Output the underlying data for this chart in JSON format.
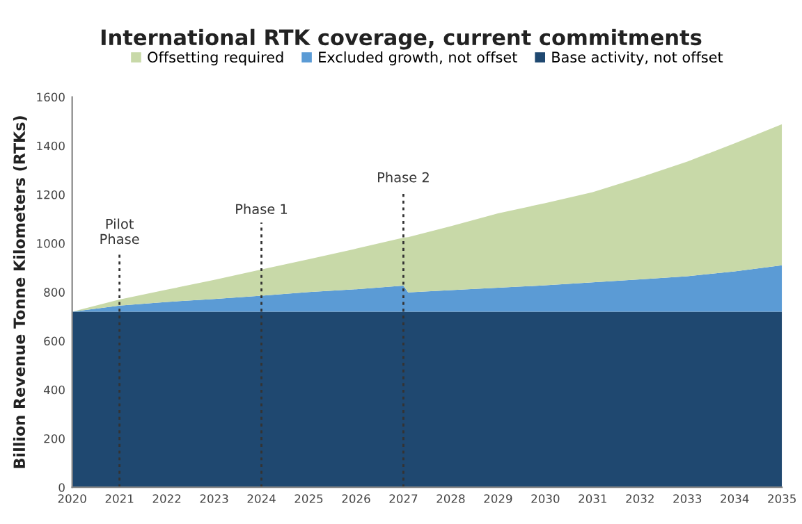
{
  "chart_data": {
    "type": "area",
    "stacked": true,
    "title": "International RTK coverage, current commitments",
    "ylabel": "Billion Revenue Tonne Kilometers (RTKs)",
    "x": [
      2020,
      2021,
      2022,
      2023,
      2024,
      2025,
      2026,
      2027,
      2027.1,
      2028,
      2029,
      2030,
      2031,
      2032,
      2033,
      2034,
      2035
    ],
    "series": [
      {
        "name": "Base activity, not offset",
        "color": "#1f4870",
        "values": [
          720,
          720,
          720,
          720,
          720,
          720,
          720,
          720,
          720,
          720,
          720,
          720,
          720,
          720,
          720,
          720,
          720
        ]
      },
      {
        "name": "Excluded growth, not offset",
        "color": "#5b9bd5",
        "values": [
          0,
          25,
          40,
          52,
          65,
          80,
          92,
          107,
          79,
          88,
          98,
          108,
          120,
          132,
          145,
          165,
          190
        ]
      },
      {
        "name": "Offsetting required",
        "color": "#c8d9a8",
        "values": [
          0,
          25,
          50,
          78,
          108,
          135,
          166,
          196,
          226,
          262,
          305,
          337,
          370,
          418,
          470,
          525,
          578
        ]
      }
    ],
    "xlim": [
      2020,
      2035
    ],
    "xticks": [
      2020,
      2021,
      2022,
      2023,
      2024,
      2025,
      2026,
      2027,
      2028,
      2029,
      2030,
      2031,
      2032,
      2033,
      2034,
      2035
    ],
    "ylim": [
      0,
      1600
    ],
    "yticks": [
      0,
      200,
      400,
      600,
      800,
      1000,
      1200,
      1400,
      1600
    ],
    "ref_lines": [
      {
        "axis": "x",
        "value": 2021,
        "label": "Pilot\nPhase",
        "line_style": "dotted",
        "color": "#333333"
      },
      {
        "axis": "x",
        "value": 2024,
        "label": "Phase 1",
        "line_style": "dotted",
        "color": "#333333"
      },
      {
        "axis": "x",
        "value": 2027,
        "label": "Phase 2",
        "line_style": "dotted",
        "color": "#333333"
      }
    ],
    "legend": "top",
    "grid": false
  }
}
